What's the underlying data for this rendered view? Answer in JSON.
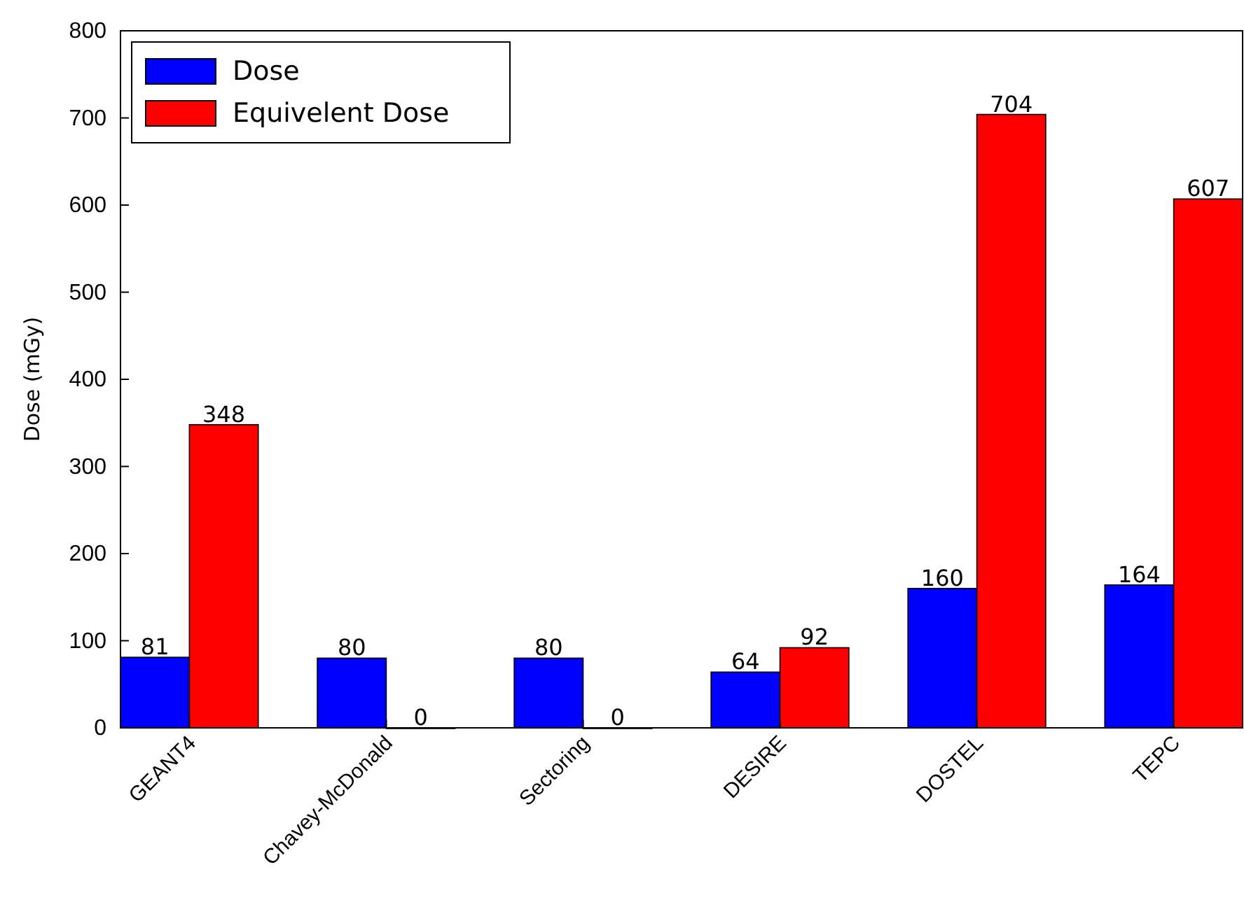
{
  "chart_data": {
    "type": "bar",
    "ylabel": "Dose (mGy)",
    "categories": [
      "GEANT4",
      "Chavey-McDonald",
      "Sectoring",
      "DESIRE",
      "DOSTEL",
      "TEPC"
    ],
    "series": [
      {
        "name": "Dose",
        "color": "#0000ff",
        "values": [
          81,
          80,
          80,
          64,
          160,
          164
        ]
      },
      {
        "name": "Equivelent Dose",
        "color": "#ff0000",
        "values": [
          348,
          0,
          0,
          92,
          704,
          607
        ]
      }
    ],
    "ylim": [
      0,
      800
    ],
    "yticks": [
      0,
      100,
      200,
      300,
      400,
      500,
      600,
      700,
      800
    ],
    "data_labels": true,
    "legend": "top left",
    "grid": false
  }
}
